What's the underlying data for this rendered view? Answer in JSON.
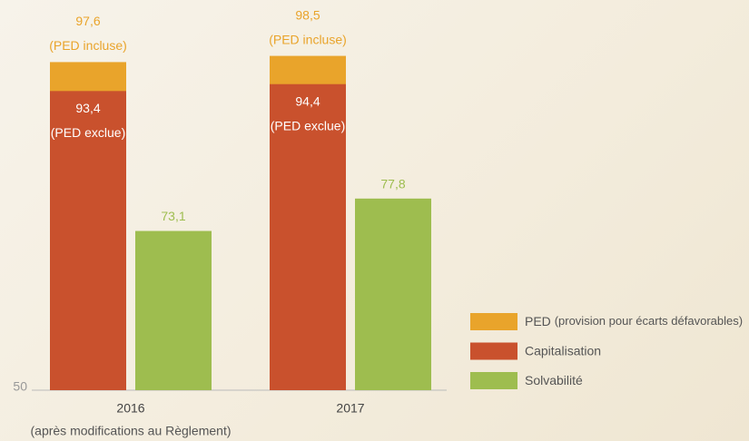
{
  "chart_data": {
    "type": "bar",
    "overlap": true,
    "categories": [
      "2016",
      "2017"
    ],
    "category_notes": [
      "(après modifications au Règlement)",
      null
    ],
    "series": [
      {
        "name": "PED",
        "legend_note": "(provision pour écarts défavorables)",
        "color": "#e9a42b",
        "values": [
          97.6,
          98.5
        ],
        "value_labels": [
          "97,6",
          "98,5"
        ],
        "value_notes": [
          "(PED incluse)",
          "(PED incluse)"
        ],
        "label_position": "above"
      },
      {
        "name": "Capitalisation",
        "color": "#c9512d",
        "values": [
          93.4,
          94.4
        ],
        "value_labels": [
          "93,4",
          "94,4"
        ],
        "value_notes": [
          "(PED exclue)",
          "(PED exclue)"
        ],
        "label_position": "inside"
      },
      {
        "name": "Solvabilité",
        "color": "#9ebd4f",
        "values": [
          73.1,
          77.8
        ],
        "value_labels": [
          "73,1",
          "77,8"
        ],
        "label_position": "above"
      }
    ],
    "ylim": [
      50,
      102
    ],
    "yticks": [
      50
    ]
  }
}
